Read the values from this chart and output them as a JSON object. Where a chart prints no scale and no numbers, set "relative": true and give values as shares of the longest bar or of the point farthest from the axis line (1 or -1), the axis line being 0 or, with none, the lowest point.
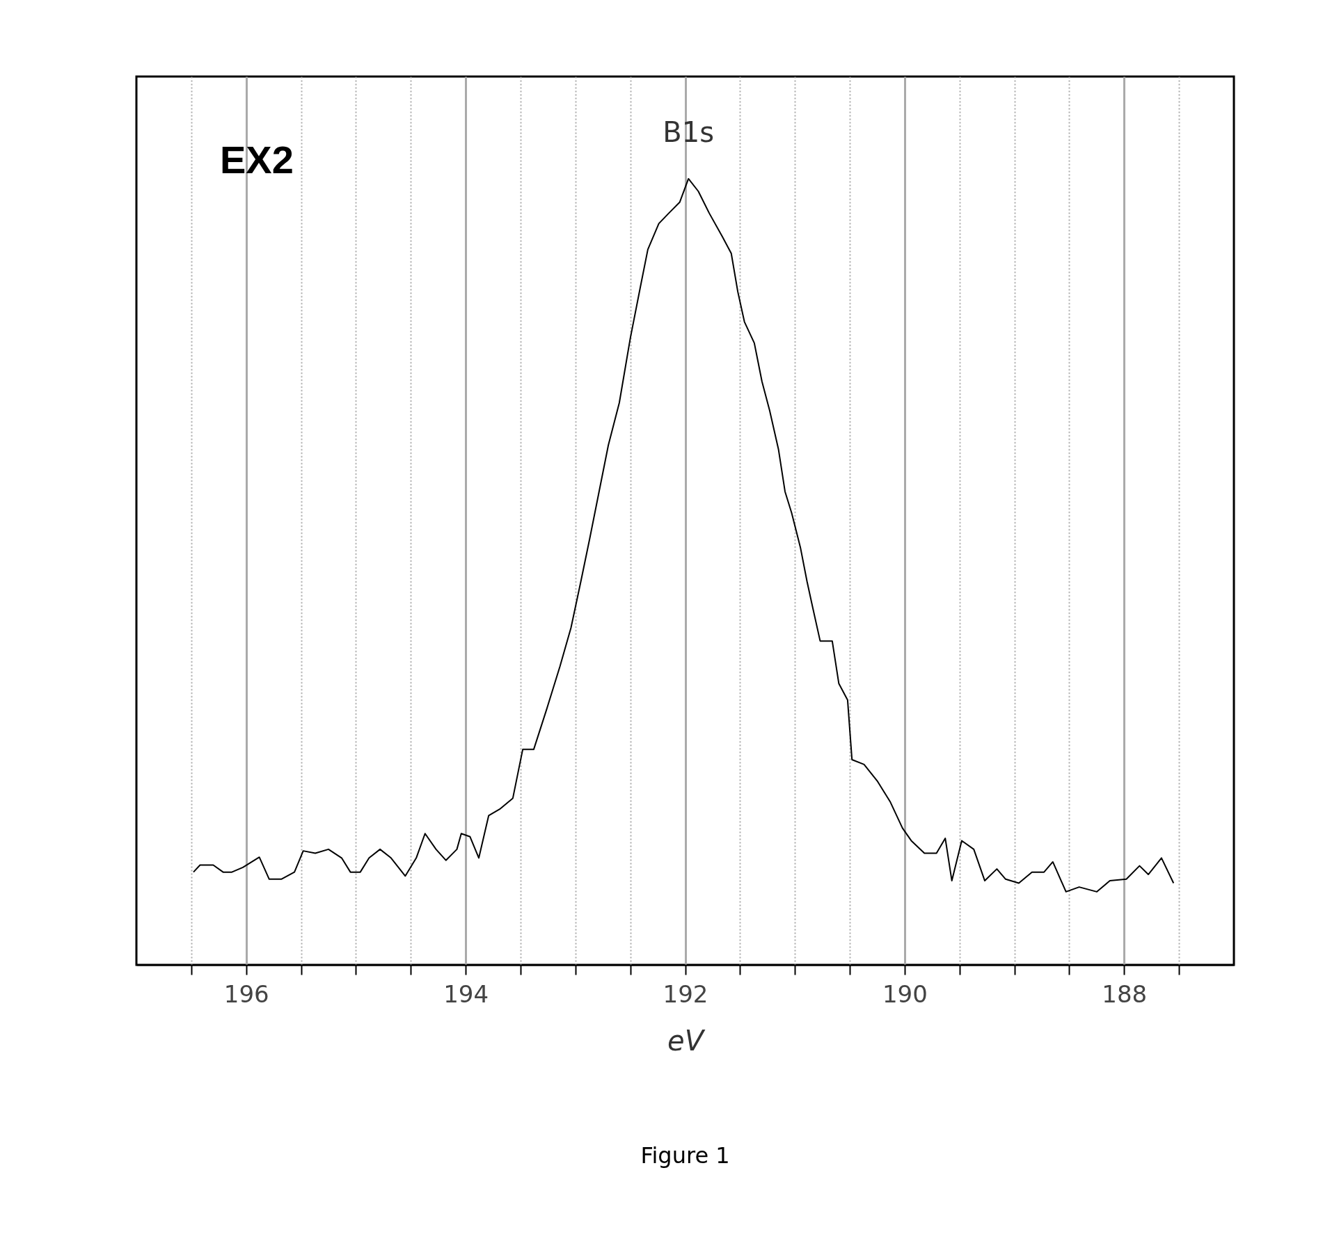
{
  "chart_data": {
    "type": "line",
    "relative": true,
    "xlabel": "eV",
    "annotations": [
      "EX2",
      {
        "text": "B1s",
        "x": 191.97,
        "y": 1.0
      },
      "Figure 1"
    ],
    "xlim": [
      197,
      187
    ],
    "xticks": [
      {
        "value": 196.5,
        "label": null
      },
      196,
      {
        "value": 195.5,
        "label": null
      },
      {
        "value": 195,
        "label": null
      },
      {
        "value": 194.5,
        "label": null
      },
      194,
      {
        "value": 193.5,
        "label": null
      },
      {
        "value": 193,
        "label": null
      },
      {
        "value": 192.5,
        "label": null
      },
      192,
      {
        "value": 191.5,
        "label": null
      },
      {
        "value": 191,
        "label": null
      },
      {
        "value": 190.5,
        "label": null
      },
      190,
      {
        "value": 189.5,
        "label": null
      },
      {
        "value": 189,
        "label": null
      },
      {
        "value": 188.5,
        "label": null
      },
      188,
      {
        "value": 187.5,
        "label": null
      }
    ],
    "grid": "x",
    "line_style": "solid",
    "series": [
      {
        "color": "#000000",
        "x": [
          196.48,
          196.42,
          196.3,
          196.21,
          196.13,
          196.03,
          195.88,
          195.79,
          195.68,
          195.56,
          195.48,
          195.37,
          195.25,
          195.13,
          195.05,
          194.96,
          194.88,
          194.78,
          194.68,
          194.55,
          194.45,
          194.37,
          194.27,
          194.18,
          194.08,
          194.04,
          193.96,
          193.88,
          193.79,
          193.69,
          193.57,
          193.48,
          193.38,
          193.26,
          193.14,
          193.04,
          192.95,
          192.87,
          192.79,
          192.7,
          192.6,
          192.5,
          192.41,
          192.34,
          192.24,
          192.15,
          192.05,
          191.97,
          191.88,
          191.78,
          191.66,
          191.58,
          191.52,
          191.46,
          191.37,
          191.3,
          191.23,
          191.15,
          191.09,
          191.03,
          190.95,
          190.89,
          190.84,
          190.77,
          190.66,
          190.6,
          190.52,
          190.48,
          190.37,
          190.25,
          190.13,
          190.02,
          189.94,
          189.82,
          189.71,
          189.63,
          189.57,
          189.48,
          189.37,
          189.27,
          189.16,
          189.08,
          188.96,
          188.84,
          188.73,
          188.65,
          188.53,
          188.41,
          188.25,
          188.13,
          187.98,
          187.86,
          187.78,
          187.66,
          187.55
        ],
        "values": [
          0.118,
          0.127,
          0.127,
          0.118,
          0.118,
          0.124,
          0.137,
          0.109,
          0.109,
          0.118,
          0.145,
          0.142,
          0.147,
          0.136,
          0.118,
          0.118,
          0.136,
          0.147,
          0.136,
          0.113,
          0.136,
          0.167,
          0.147,
          0.133,
          0.147,
          0.167,
          0.163,
          0.136,
          0.19,
          0.198,
          0.212,
          0.274,
          0.274,
          0.326,
          0.38,
          0.429,
          0.488,
          0.542,
          0.598,
          0.661,
          0.715,
          0.797,
          0.861,
          0.91,
          0.943,
          0.956,
          0.97,
          1.0,
          0.984,
          0.956,
          0.926,
          0.905,
          0.856,
          0.818,
          0.791,
          0.742,
          0.705,
          0.656,
          0.602,
          0.575,
          0.531,
          0.488,
          0.456,
          0.412,
          0.412,
          0.358,
          0.337,
          0.261,
          0.255,
          0.234,
          0.207,
          0.174,
          0.158,
          0.142,
          0.142,
          0.161,
          0.107,
          0.158,
          0.147,
          0.107,
          0.122,
          0.109,
          0.104,
          0.118,
          0.118,
          0.131,
          0.093,
          0.099,
          0.093,
          0.107,
          0.109,
          0.126,
          0.115,
          0.136,
          0.104
        ]
      }
    ]
  }
}
